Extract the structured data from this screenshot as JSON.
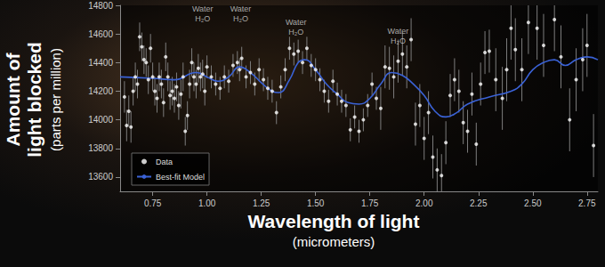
{
  "chart_data": {
    "type": "scatter",
    "xlabel": [
      "Wavelength of light",
      "(micrometers)"
    ],
    "ylabel": [
      "Amount of",
      "light blocked",
      "(parts per million)"
    ],
    "xlim": [
      0.6,
      2.8
    ],
    "xticks": [
      0.75,
      {
        "value": 1,
        "label": "1.00"
      },
      1.25,
      {
        "value": 1.5,
        "label": "1.50"
      },
      1.75,
      {
        "value": 2,
        "label": "2.00"
      },
      2.25,
      {
        "value": 2.5,
        "label": "2.50"
      },
      2.75
    ],
    "ylim": [
      13500,
      14800
    ],
    "yticks": [
      13600,
      13800,
      14000,
      14200,
      14400,
      14600,
      14800
    ],
    "grid": false,
    "legend": "lower left",
    "annotations": [
      {
        "text": "Water\nH₂O",
        "x": 0.98,
        "y": 14740
      },
      {
        "text": "Water\nH₂O",
        "x": 1.155,
        "y": 14740
      },
      {
        "text": "Water\nH₂O",
        "x": 1.41,
        "y": 14650
      },
      {
        "text": "Water\nH₂O",
        "x": 1.88,
        "y": 14585
      }
    ],
    "series": [
      {
        "name": "Data",
        "type": "scatter",
        "color": "#ffffff",
        "marker": "circle",
        "x": [
          0.62,
          0.63,
          0.64,
          0.65,
          0.66,
          0.67,
          0.68,
          0.69,
          0.7,
          0.71,
          0.72,
          0.73,
          0.74,
          0.75,
          0.76,
          0.77,
          0.78,
          0.79,
          0.8,
          0.81,
          0.82,
          0.83,
          0.84,
          0.85,
          0.86,
          0.87,
          0.88,
          0.89,
          0.9,
          0.91,
          0.92,
          0.93,
          0.94,
          0.95,
          0.96,
          0.97,
          0.98,
          0.99,
          1.0,
          1.02,
          1.04,
          1.06,
          1.08,
          1.1,
          1.12,
          1.14,
          1.15,
          1.16,
          1.18,
          1.2,
          1.22,
          1.24,
          1.26,
          1.28,
          1.3,
          1.32,
          1.34,
          1.36,
          1.38,
          1.4,
          1.42,
          1.44,
          1.46,
          1.48,
          1.5,
          1.52,
          1.54,
          1.56,
          1.58,
          1.6,
          1.62,
          1.64,
          1.66,
          1.68,
          1.7,
          1.72,
          1.74,
          1.76,
          1.78,
          1.8,
          1.82,
          1.84,
          1.86,
          1.88,
          1.9,
          1.92,
          1.94,
          1.96,
          1.98,
          2.0,
          2.02,
          2.04,
          2.06,
          2.08,
          2.1,
          2.12,
          2.14,
          2.16,
          2.18,
          2.2,
          2.22,
          2.24,
          2.26,
          2.28,
          2.3,
          2.33,
          2.36,
          2.38,
          2.4,
          2.42,
          2.45,
          2.48,
          2.52,
          2.55,
          2.6,
          2.63,
          2.67,
          2.7,
          2.73,
          2.75,
          2.78
        ],
        "values": [
          14160,
          13960,
          14060,
          13950,
          14200,
          14300,
          14250,
          14580,
          14510,
          14420,
          14400,
          14280,
          14500,
          14300,
          14200,
          14150,
          14300,
          14250,
          14120,
          14440,
          14300,
          14170,
          14200,
          14150,
          14230,
          14100,
          14180,
          14300,
          13920,
          14030,
          14250,
          14400,
          14300,
          14250,
          14360,
          14300,
          14320,
          14200,
          14370,
          14300,
          14250,
          14220,
          14300,
          14270,
          14380,
          14400,
          14350,
          14430,
          14300,
          14330,
          14250,
          14350,
          14280,
          14220,
          14200,
          14050,
          14230,
          14350,
          14500,
          14460,
          14480,
          14400,
          14500,
          14380,
          14350,
          14280,
          14200,
          14130,
          14270,
          14180,
          14130,
          14100,
          13930,
          14020,
          13920,
          14000,
          14100,
          14250,
          14150,
          14080,
          14370,
          14360,
          14300,
          14410,
          14460,
          14370,
          14560,
          13970,
          14100,
          13870,
          14050,
          13740,
          13650,
          13610,
          13840,
          14170,
          14280,
          14200,
          13980,
          13920,
          14180,
          13830,
          14250,
          14470,
          14480,
          14280,
          14150,
          14350,
          14640,
          14490,
          14350,
          14680,
          14640,
          14520,
          14700,
          14440,
          14000,
          14280,
          14420,
          14520,
          13820
        ],
        "error": [
          110,
          110,
          110,
          110,
          100,
          100,
          100,
          100,
          100,
          100,
          100,
          100,
          100,
          100,
          100,
          100,
          100,
          100,
          100,
          100,
          100,
          100,
          100,
          100,
          100,
          100,
          100,
          100,
          100,
          100,
          100,
          100,
          100,
          100,
          100,
          100,
          100,
          100,
          80,
          80,
          80,
          80,
          80,
          80,
          80,
          80,
          80,
          80,
          80,
          80,
          80,
          80,
          80,
          80,
          80,
          80,
          80,
          80,
          80,
          80,
          80,
          80,
          80,
          80,
          80,
          80,
          80,
          80,
          80,
          80,
          80,
          80,
          80,
          80,
          80,
          80,
          80,
          80,
          80,
          150,
          150,
          150,
          150,
          150,
          150,
          150,
          150,
          150,
          150,
          150,
          150,
          150,
          150,
          150,
          150,
          150,
          150,
          150,
          150,
          150,
          150,
          150,
          150,
          150,
          150,
          220,
          220,
          220,
          220,
          220,
          220,
          220,
          220,
          220,
          220,
          220,
          220,
          220,
          220,
          220,
          220
        ]
      },
      {
        "name": "Best-fit Model",
        "type": "line",
        "color": "#3a62d6",
        "line_style": "solid",
        "x": [
          0.6,
          0.75,
          0.85,
          0.95,
          1.0,
          1.05,
          1.1,
          1.15,
          1.2,
          1.25,
          1.3,
          1.33,
          1.38,
          1.42,
          1.45,
          1.5,
          1.55,
          1.6,
          1.65,
          1.7,
          1.75,
          1.8,
          1.85,
          1.9,
          1.95,
          2.0,
          2.05,
          2.1,
          2.15,
          2.2,
          2.3,
          2.4,
          2.45,
          2.5,
          2.55,
          2.6,
          2.65,
          2.7,
          2.75,
          2.8
        ],
        "values": [
          14300,
          14290,
          14280,
          14330,
          14300,
          14270,
          14300,
          14370,
          14330,
          14260,
          14200,
          14190,
          14280,
          14400,
          14420,
          14350,
          14250,
          14180,
          14120,
          14110,
          14150,
          14250,
          14330,
          14310,
          14250,
          14170,
          14060,
          14020,
          14050,
          14110,
          14160,
          14200,
          14250,
          14350,
          14400,
          14420,
          14380,
          14420,
          14440,
          14420
        ]
      }
    ]
  }
}
